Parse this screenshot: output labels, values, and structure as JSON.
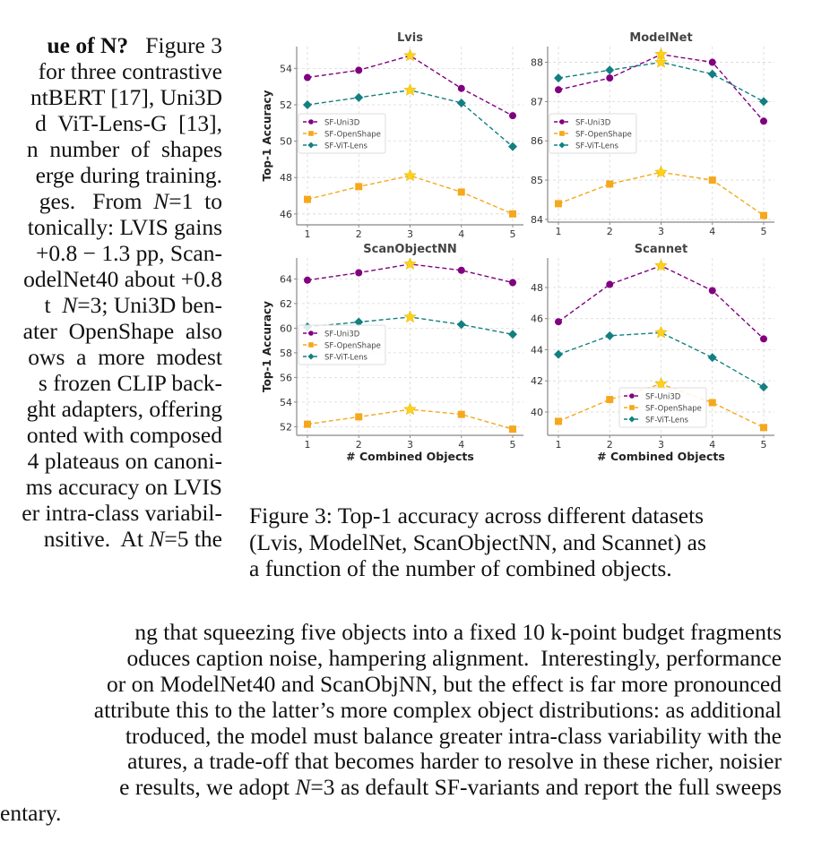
{
  "left_column_lines": [
    {
      "html": "<b>ue of N?</b>&nbsp;&nbsp; Figure 3"
    },
    {
      "html": "for three contrastive"
    },
    {
      "html": "ntBERT [17], Uni3D"
    },
    {
      "html": "d&nbsp; ViT-Lens-G&nbsp; [13],"
    },
    {
      "html": "n&nbsp; number&nbsp; of&nbsp; shapes"
    },
    {
      "html": "erge during training."
    },
    {
      "html": "ges.&nbsp;&nbsp; From&nbsp; <i>N</i>=1&nbsp; to"
    },
    {
      "html": "tonically: LVIS gains"
    },
    {
      "html": "+0.8 &minus; 1.3 pp, Scan-"
    },
    {
      "html": "odelNet40 about +0.8"
    },
    {
      "html": "t&nbsp; <i>N</i>=3; Uni3D ben-"
    },
    {
      "html": "ater&nbsp; OpenShape&nbsp; also"
    },
    {
      "html": "ows&nbsp; a&nbsp; more&nbsp; modest"
    },
    {
      "html": "s frozen CLIP back-"
    },
    {
      "html": "ght adapters, offering"
    },
    {
      "html": "onted with composed"
    },
    {
      "html": "4 plateaus on canoni-"
    },
    {
      "html": "ms accuracy on LVIS"
    },
    {
      "html": "er intra-class variabil-"
    },
    {
      "html": "nsitive.&nbsp; At <i>N</i>=5 the"
    }
  ],
  "full_width_lines": [
    {
      "html": "ng that squeezing five objects into a fixed 10 k-point budget fragments"
    },
    {
      "html": "oduces caption noise, hampering alignment.&nbsp; Interestingly, performance"
    },
    {
      "html": "or on ModelNet40 and ScanObjNN, but the effect is far more pronounced"
    },
    {
      "html": "attribute this to the latter&rsquo;s more complex object distributions: as additional"
    },
    {
      "html": "troduced, the model must balance greater intra-class variability with the"
    },
    {
      "html": "atures, a trade-off that becomes harder to resolve in these richer, noisier"
    },
    {
      "html": "e results, we adopt <i>N</i>=3 as default SF-variants and report the full sweeps"
    },
    {
      "html": "entary."
    }
  ],
  "caption_lines": [
    "Figure 3: Top-1 accuracy across different datasets",
    "(Lvis, ModelNet, ScanObjectNN, and Scannet) as",
    "a function of the number of combined objects."
  ],
  "colors": {
    "uni3d": "#800080",
    "openshape": "#f5a81c",
    "vitlens": "#128080",
    "highlight_star": "#ffd21a",
    "axis": "#888888",
    "grid": "#d8d8d8",
    "text": "#333333"
  },
  "chart_data": [
    {
      "type": "line",
      "title": "Lvis",
      "xlabel": "",
      "ylabel": "Top-1 Accuracy",
      "x": [
        1,
        2,
        3,
        4,
        5
      ],
      "xticks": [
        "1",
        "2",
        "3",
        "4",
        "5"
      ],
      "yticks": [
        46,
        48,
        50,
        52,
        54
      ],
      "ylim": [
        45.4,
        55.2
      ],
      "grid": true,
      "legend": "center-left",
      "highlight_x": 3,
      "series": [
        {
          "name": "SF-Uni3D",
          "marker": "circle",
          "values": [
            53.5,
            53.9,
            54.7,
            52.9,
            51.4
          ]
        },
        {
          "name": "SF-OpenShape",
          "marker": "square",
          "values": [
            46.8,
            47.5,
            48.1,
            47.2,
            46.0
          ]
        },
        {
          "name": "SF-ViT-Lens",
          "marker": "diamond",
          "values": [
            52.0,
            52.4,
            52.8,
            52.1,
            49.7
          ]
        }
      ]
    },
    {
      "type": "line",
      "title": "ModelNet",
      "xlabel": "",
      "ylabel": "",
      "x": [
        1,
        2,
        3,
        4,
        5
      ],
      "xticks": [
        "1",
        "2",
        "3",
        "4",
        "5"
      ],
      "yticks": [
        84,
        85,
        86,
        87,
        88
      ],
      "ylim": [
        83.93,
        88.4
      ],
      "grid": true,
      "legend": "center-left",
      "highlight_x": 3,
      "series": [
        {
          "name": "SF-Uni3D",
          "marker": "circle",
          "values": [
            87.3,
            87.6,
            88.2,
            88.0,
            86.5
          ]
        },
        {
          "name": "SF-OpenShape",
          "marker": "square",
          "values": [
            84.4,
            84.9,
            85.2,
            85.0,
            84.1
          ]
        },
        {
          "name": "SF-ViT-Lens",
          "marker": "diamond",
          "values": [
            87.6,
            87.8,
            88.0,
            87.7,
            87.0
          ]
        }
      ]
    },
    {
      "type": "line",
      "title": "ScanObjectNN",
      "xlabel": "# Combined Objects",
      "ylabel": "Top-1 Accuracy",
      "x": [
        1,
        2,
        3,
        4,
        5
      ],
      "xticks": [
        "1",
        "2",
        "3",
        "4",
        "5"
      ],
      "yticks": [
        52,
        54,
        56,
        58,
        60,
        62,
        64
      ],
      "ylim": [
        51.3,
        65.7
      ],
      "grid": true,
      "legend": "center-left",
      "highlight_x": 3,
      "series": [
        {
          "name": "SF-Uni3D",
          "marker": "circle",
          "values": [
            63.9,
            64.5,
            65.2,
            64.7,
            63.7
          ]
        },
        {
          "name": "SF-OpenShape",
          "marker": "square",
          "values": [
            52.2,
            52.8,
            53.4,
            53.0,
            51.8
          ]
        },
        {
          "name": "SF-ViT-Lens",
          "marker": "diamond",
          "values": [
            60.1,
            60.5,
            60.9,
            60.3,
            59.5
          ]
        }
      ]
    },
    {
      "type": "line",
      "title": "Scannet",
      "xlabel": "# Combined Objects",
      "ylabel": "",
      "x": [
        1,
        2,
        3,
        4,
        5
      ],
      "xticks": [
        "1",
        "2",
        "3",
        "4",
        "5"
      ],
      "yticks": [
        40,
        42,
        44,
        46,
        48
      ],
      "ylim": [
        38.5,
        49.9
      ],
      "grid": true,
      "legend": "lower-center",
      "highlight_x": 3,
      "series": [
        {
          "name": "SF-Uni3D",
          "marker": "circle",
          "values": [
            45.8,
            48.2,
            49.4,
            47.8,
            44.7
          ]
        },
        {
          "name": "SF-OpenShape",
          "marker": "square",
          "values": [
            39.4,
            40.8,
            41.8,
            40.6,
            39.0
          ]
        },
        {
          "name": "SF-ViT-Lens",
          "marker": "diamond",
          "values": [
            43.7,
            44.9,
            45.1,
            43.5,
            41.6
          ]
        }
      ]
    }
  ]
}
